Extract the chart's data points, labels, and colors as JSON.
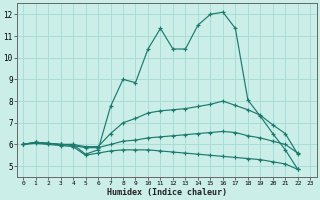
{
  "xlabel": "Humidex (Indice chaleur)",
  "background_color": "#cceee8",
  "grid_color": "#aaddd8",
  "line_color": "#1a7a6e",
  "xlim": [
    -0.5,
    23.5
  ],
  "ylim": [
    4.5,
    12.5
  ],
  "xticks": [
    0,
    1,
    2,
    3,
    4,
    5,
    6,
    7,
    8,
    9,
    10,
    11,
    12,
    13,
    14,
    15,
    16,
    17,
    18,
    19,
    20,
    21,
    22,
    23
  ],
  "yticks": [
    5,
    6,
    7,
    8,
    9,
    10,
    11,
    12
  ],
  "lines": [
    {
      "x": [
        0,
        1,
        2,
        3,
        4,
        5,
        6,
        7,
        8,
        9,
        10,
        11,
        12,
        13,
        14,
        15,
        16,
        17,
        18,
        19,
        20,
        21,
        22
      ],
      "y": [
        6.0,
        6.1,
        6.05,
        6.0,
        6.0,
        5.55,
        5.75,
        7.75,
        9.0,
        8.85,
        10.4,
        11.35,
        10.4,
        10.4,
        11.5,
        12.0,
        12.1,
        11.35,
        8.05,
        7.3,
        6.5,
        5.75,
        4.85
      ]
    },
    {
      "x": [
        0,
        1,
        2,
        3,
        4,
        5,
        6,
        7,
        8,
        9,
        10,
        11,
        12,
        13,
        14,
        15,
        16,
        17,
        18,
        19,
        20,
        21,
        22
      ],
      "y": [
        6.0,
        6.1,
        6.05,
        6.0,
        6.0,
        5.9,
        5.9,
        6.5,
        7.0,
        7.2,
        7.45,
        7.55,
        7.6,
        7.65,
        7.75,
        7.85,
        8.0,
        7.8,
        7.6,
        7.35,
        6.9,
        6.5,
        5.55
      ]
    },
    {
      "x": [
        0,
        1,
        2,
        3,
        4,
        5,
        6,
        7,
        8,
        9,
        10,
        11,
        12,
        13,
        14,
        15,
        16,
        17,
        18,
        19,
        20,
        21,
        22
      ],
      "y": [
        6.0,
        6.1,
        6.05,
        6.0,
        5.95,
        5.85,
        5.85,
        6.0,
        6.15,
        6.2,
        6.3,
        6.35,
        6.4,
        6.45,
        6.5,
        6.55,
        6.6,
        6.55,
        6.4,
        6.3,
        6.15,
        6.0,
        5.6
      ]
    },
    {
      "x": [
        0,
        1,
        2,
        3,
        4,
        5,
        6,
        7,
        8,
        9,
        10,
        11,
        12,
        13,
        14,
        15,
        16,
        17,
        18,
        19,
        20,
        21,
        22
      ],
      "y": [
        6.0,
        6.05,
        6.0,
        5.95,
        5.9,
        5.5,
        5.6,
        5.7,
        5.75,
        5.75,
        5.75,
        5.7,
        5.65,
        5.6,
        5.55,
        5.5,
        5.45,
        5.4,
        5.35,
        5.3,
        5.2,
        5.1,
        4.85
      ]
    }
  ]
}
